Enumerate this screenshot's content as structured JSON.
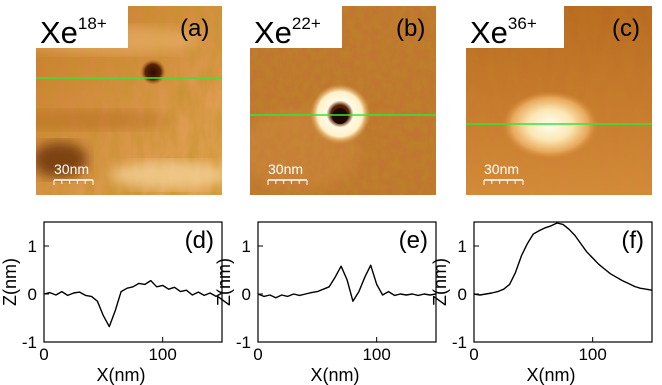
{
  "panels_top": [
    {
      "ion_base": "Xe",
      "charge": "18+",
      "tag": "(a)",
      "scale": "30nm"
    },
    {
      "ion_base": "Xe",
      "charge": "22+",
      "tag": "(b)",
      "scale": "30nm"
    },
    {
      "ion_base": "Xe",
      "charge": "36+",
      "tag": "(c)",
      "scale": "30nm"
    }
  ],
  "colors": {
    "line_cut": "#33e63a",
    "afm_dark": "#8a3a05",
    "afm_mid": "#d08a3a",
    "afm_light": "#fff3d2",
    "trace": "#000000"
  },
  "chart_data": [
    {
      "type": "line",
      "tag": "(d)",
      "xlabel": "X(nm)",
      "ylabel": "Z(nm)",
      "xlim": [
        0,
        150
      ],
      "ylim": [
        -1,
        1.5
      ],
      "xticks": [
        0,
        100
      ],
      "yticks": [
        -1,
        0,
        1
      ],
      "x": [
        0,
        5,
        10,
        15,
        20,
        25,
        30,
        35,
        40,
        45,
        50,
        55,
        60,
        65,
        70,
        75,
        80,
        85,
        90,
        95,
        100,
        105,
        110,
        115,
        120,
        125,
        130,
        135,
        140,
        145,
        150
      ],
      "values": [
        0,
        0.03,
        -0.02,
        0.05,
        -0.03,
        0.02,
        0.04,
        -0.03,
        -0.05,
        -0.15,
        -0.45,
        -0.68,
        -0.35,
        0.05,
        0.12,
        0.15,
        0.22,
        0.2,
        0.28,
        0.15,
        0.18,
        0.1,
        0.14,
        0.05,
        0.08,
        -0.02,
        0.04,
        -0.03,
        0.02,
        -0.05,
        0.02
      ]
    },
    {
      "type": "line",
      "tag": "(e)",
      "xlabel": "X(nm)",
      "ylabel": "Z(nm)",
      "xlim": [
        0,
        150
      ],
      "ylim": [
        -1,
        1.5
      ],
      "xticks": [
        0,
        100
      ],
      "yticks": [
        -1,
        0,
        1
      ],
      "x": [
        0,
        5,
        10,
        15,
        20,
        25,
        30,
        35,
        40,
        45,
        50,
        55,
        60,
        65,
        70,
        75,
        80,
        85,
        90,
        95,
        100,
        105,
        110,
        115,
        120,
        125,
        130,
        135,
        140,
        145,
        150
      ],
      "values": [
        0,
        -0.05,
        -0.02,
        -0.08,
        -0.02,
        -0.05,
        0.0,
        -0.03,
        0.0,
        0.03,
        0.05,
        0.1,
        0.15,
        0.35,
        0.58,
        0.3,
        -0.15,
        0.05,
        0.35,
        0.6,
        0.2,
        -0.02,
        0.05,
        -0.03,
        0.0,
        -0.02,
        0.0,
        -0.03,
        0.0,
        -0.02,
        0.0
      ]
    },
    {
      "type": "line",
      "tag": "(f)",
      "xlabel": "X(nm)",
      "ylabel": "Z(nm)",
      "xlim": [
        0,
        150
      ],
      "ylim": [
        -1,
        1.5
      ],
      "xticks": [
        0,
        100
      ],
      "yticks": [
        -1,
        0,
        1
      ],
      "x": [
        0,
        5,
        10,
        15,
        20,
        25,
        30,
        35,
        40,
        45,
        50,
        55,
        60,
        65,
        70,
        75,
        80,
        85,
        90,
        95,
        100,
        105,
        110,
        115,
        120,
        125,
        130,
        135,
        140,
        145,
        150
      ],
      "values": [
        0,
        -0.02,
        0.0,
        0.02,
        0.05,
        0.1,
        0.2,
        0.45,
        0.8,
        1.05,
        1.25,
        1.32,
        1.38,
        1.42,
        1.48,
        1.45,
        1.35,
        1.22,
        1.05,
        0.88,
        0.75,
        0.62,
        0.52,
        0.42,
        0.35,
        0.28,
        0.22,
        0.16,
        0.12,
        0.1,
        0.08
      ]
    }
  ]
}
